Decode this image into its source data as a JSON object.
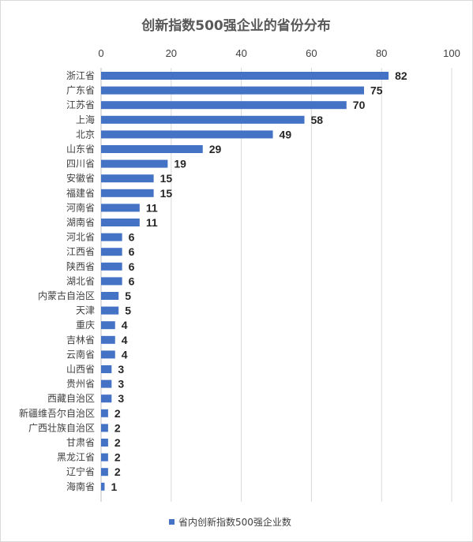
{
  "colors": {
    "bar": "#4472C4",
    "grid": "#d9d9d9",
    "axis": "#bfbfbf"
  },
  "chart_data": {
    "type": "bar",
    "orientation": "horizontal",
    "title": "创新指数500强企业的省份分布",
    "xlim": [
      0,
      100
    ],
    "xticks": [
      0,
      20,
      40,
      60,
      80,
      100
    ],
    "x_axis_position": "top",
    "grid": true,
    "legend_position": "bottom",
    "categories": [
      "浙江省",
      "广东省",
      "江苏省",
      "上海",
      "北京",
      "山东省",
      "四川省",
      "安徽省",
      "福建省",
      "河南省",
      "湖南省",
      "河北省",
      "江西省",
      "陕西省",
      "湖北省",
      "内蒙古自治区",
      "天津",
      "重庆",
      "吉林省",
      "云南省",
      "山西省",
      "贵州省",
      "西藏自治区",
      "新疆维吾尔自治区",
      "广西壮族自治区",
      "甘肃省",
      "黑龙江省",
      "辽宁省",
      "海南省"
    ],
    "series": [
      {
        "name": "省内创新指数500强企业数",
        "values": [
          82,
          75,
          70,
          58,
          49,
          29,
          19,
          15,
          15,
          11,
          11,
          6,
          6,
          6,
          6,
          5,
          5,
          4,
          4,
          4,
          3,
          3,
          3,
          2,
          2,
          2,
          2,
          2,
          1
        ]
      }
    ]
  }
}
